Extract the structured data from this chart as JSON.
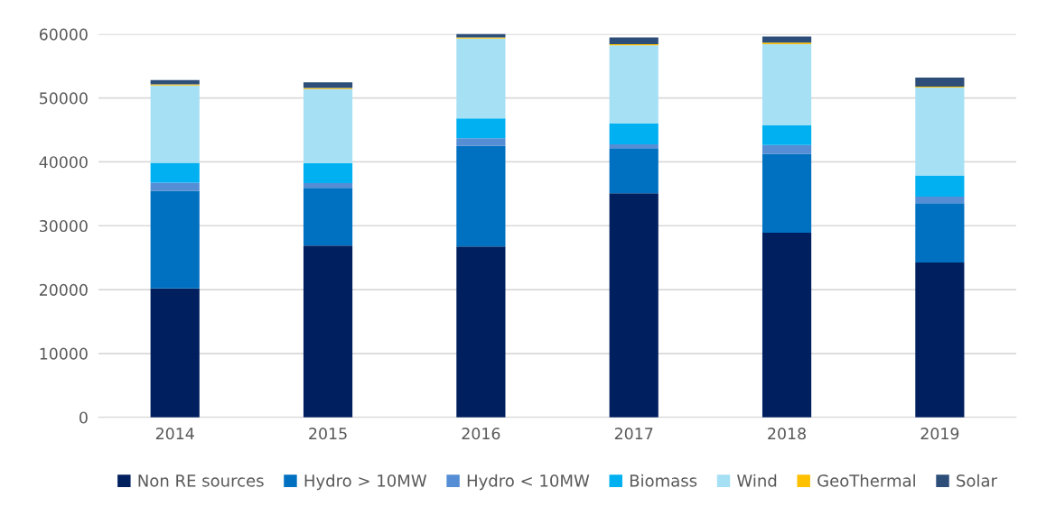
{
  "chart_data": {
    "type": "bar",
    "stacked": true,
    "categories": [
      "2014",
      "2015",
      "2016",
      "2017",
      "2018",
      "2019"
    ],
    "series": [
      {
        "name": "Non RE sources",
        "color": "#001f5f",
        "values": [
          20200,
          26900,
          26760,
          35080,
          28890,
          24260
        ]
      },
      {
        "name": "Hydro > 10MW",
        "color": "#0070c0",
        "values": [
          15260,
          9030,
          15750,
          7050,
          12340,
          9260
        ]
      },
      {
        "name": "Hydro < 10MW",
        "color": "#558ed5",
        "values": [
          1280,
          760,
          1180,
          610,
          1420,
          1040
        ]
      },
      {
        "name": "Biomass",
        "color": "#00b0f0",
        "values": [
          3120,
          3120,
          3120,
          3260,
          3070,
          3310
        ]
      },
      {
        "name": "Wind",
        "color": "#a6e0f5",
        "values": [
          12100,
          11580,
          12480,
          12250,
          12720,
          13760
        ]
      },
      {
        "name": "GeoThermal",
        "color": "#ffc000",
        "values": [
          190,
          200,
          190,
          190,
          240,
          140
        ]
      },
      {
        "name": "Solar",
        "color": "#2e4e7a",
        "values": [
          660,
          850,
          660,
          1040,
          940,
          1420
        ]
      }
    ],
    "ylim": [
      0,
      60000
    ],
    "yticks": [
      0,
      10000,
      20000,
      30000,
      40000,
      50000,
      60000
    ],
    "grid": "y",
    "legend": "bottom"
  }
}
